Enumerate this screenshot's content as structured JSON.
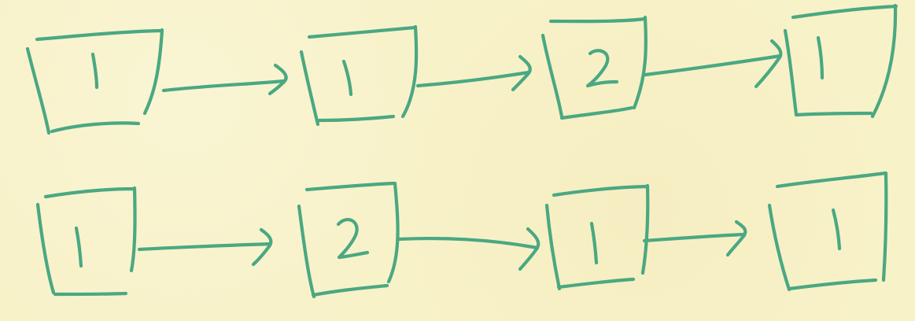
{
  "diagram": {
    "ink_color": "#4aa882",
    "background_color": "#f8f2c9",
    "rows": [
      {
        "nodes": [
          {
            "value": "1"
          },
          {
            "value": "1"
          },
          {
            "value": "2"
          },
          {
            "value": "1"
          }
        ],
        "arrows": 3
      },
      {
        "nodes": [
          {
            "value": "1"
          },
          {
            "value": "2"
          },
          {
            "value": "1"
          },
          {
            "value": "1"
          }
        ],
        "arrows": 3
      }
    ]
  }
}
